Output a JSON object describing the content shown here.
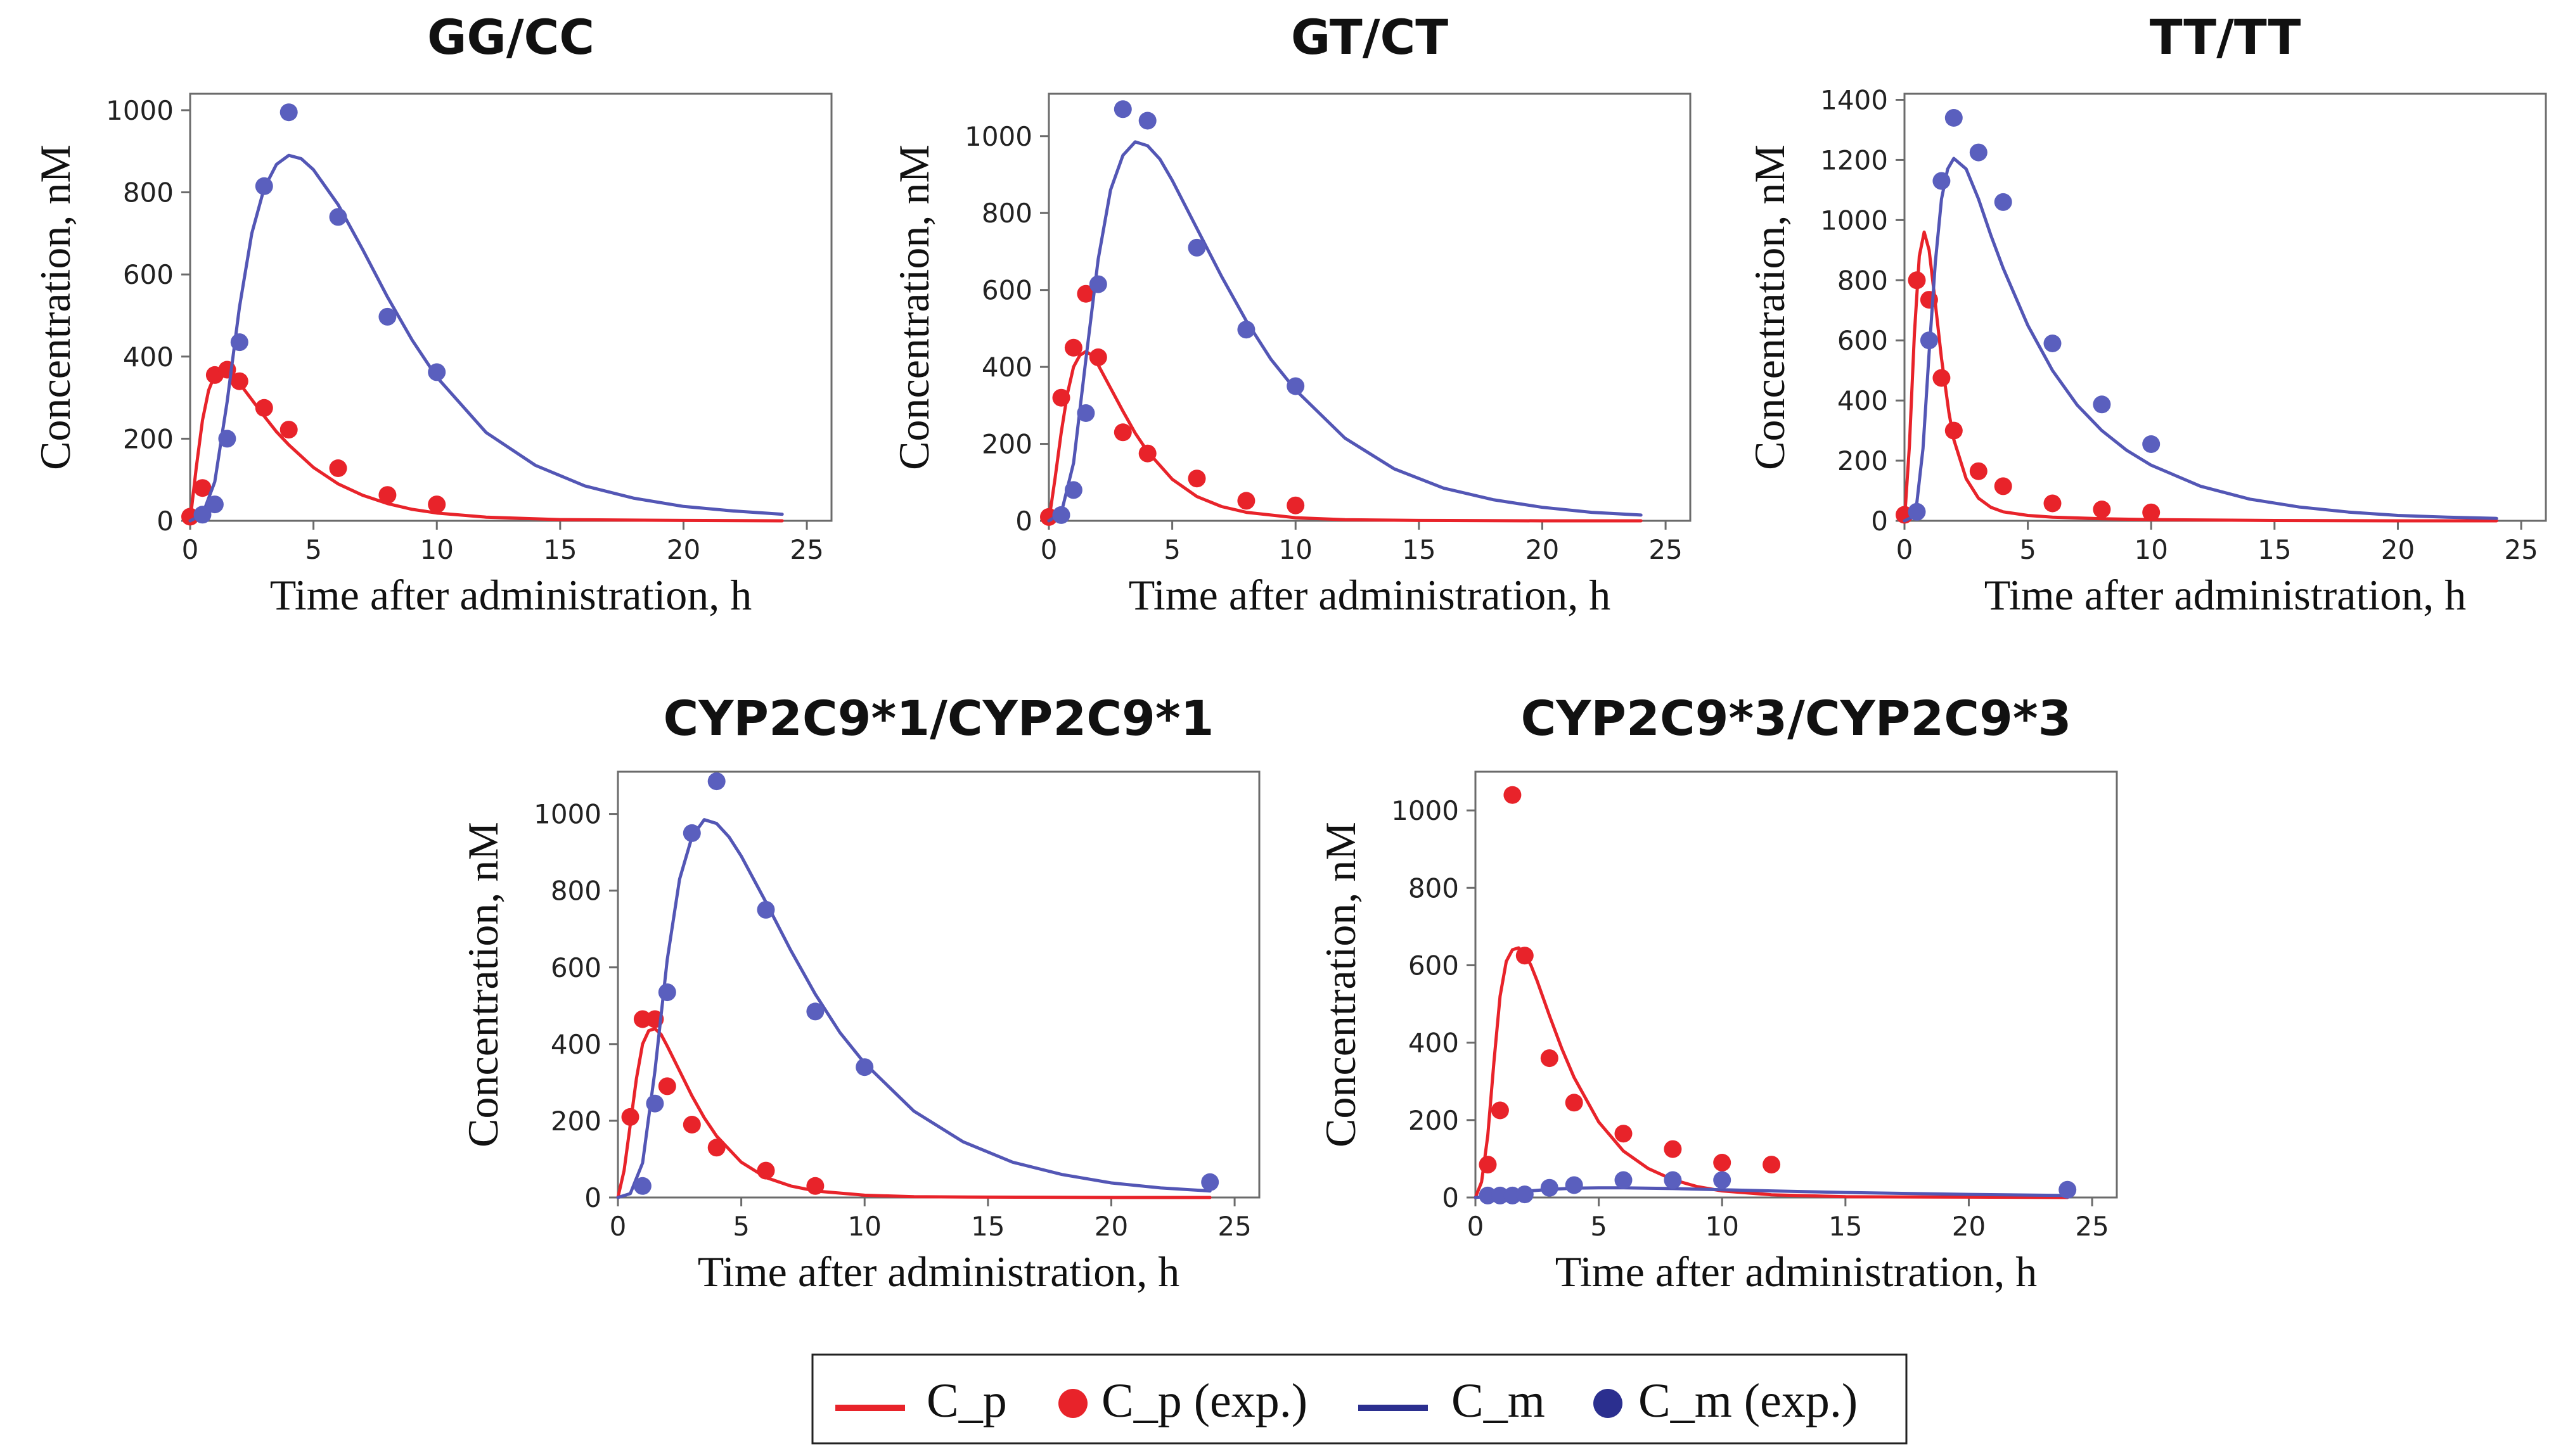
{
  "legend": {
    "items": [
      {
        "label": "C_p",
        "kind": "line",
        "color": "#e8232a"
      },
      {
        "label": "C_p (exp.)",
        "kind": "marker",
        "color": "#e8232a"
      },
      {
        "label": "C_m",
        "kind": "line",
        "color": "#2b2f8f"
      },
      {
        "label": "C_m (exp.)",
        "kind": "marker",
        "color": "#2b2f8f"
      }
    ]
  },
  "colors": {
    "cp_line": "#e8232a",
    "cp_marker": "#e8232a",
    "cm_line": "#5356b5",
    "cm_marker": "#5a5fbe"
  },
  "chart_data": [
    {
      "type": "line",
      "title": "GG/CC",
      "xlabel": "Time after administration, h",
      "ylabel": "Concentration, nM",
      "xlim": [
        0,
        26
      ],
      "ylim": [
        0,
        1040
      ],
      "xticks": [
        0,
        5,
        10,
        15,
        20,
        25
      ],
      "yticks": [
        0,
        200,
        400,
        600,
        800,
        1000
      ],
      "series": [
        {
          "name": "C_p",
          "kind": "line",
          "x": [
            0,
            0.25,
            0.5,
            0.75,
            1,
            1.25,
            1.5,
            1.75,
            2,
            2.5,
            3,
            3.5,
            4,
            5,
            6,
            7,
            8,
            9,
            10,
            12,
            15,
            20,
            24
          ],
          "y": [
            0,
            130,
            245,
            318,
            355,
            366,
            362,
            350,
            335,
            295,
            255,
            217,
            185,
            130,
            90,
            62,
            42,
            28,
            19,
            9,
            3,
            1,
            0
          ]
        },
        {
          "name": "C_p (exp.)",
          "kind": "marker",
          "x": [
            0,
            0.5,
            1,
            1.5,
            2,
            3,
            4,
            6,
            8,
            10
          ],
          "y": [
            10,
            80,
            355,
            368,
            340,
            275,
            222,
            128,
            63,
            40
          ]
        },
        {
          "name": "C_m",
          "kind": "line",
          "x": [
            0,
            0.5,
            1,
            1.5,
            2,
            2.5,
            3,
            3.5,
            4,
            4.5,
            5,
            6,
            7,
            8,
            9,
            10,
            12,
            14,
            16,
            18,
            20,
            22,
            24
          ],
          "y": [
            0,
            15,
            95,
            290,
            520,
            700,
            810,
            868,
            890,
            882,
            855,
            770,
            660,
            545,
            440,
            350,
            215,
            135,
            85,
            55,
            35,
            24,
            16
          ]
        },
        {
          "name": "C_m (exp.)",
          "kind": "marker",
          "x": [
            0.5,
            1,
            1.5,
            2,
            3,
            4,
            6,
            8,
            10
          ],
          "y": [
            15,
            40,
            200,
            435,
            815,
            995,
            740,
            497,
            362
          ]
        }
      ]
    },
    {
      "type": "line",
      "title": "GT/CT",
      "xlabel": "Time after administration, h",
      "ylabel": "Concentration, nM",
      "xlim": [
        0,
        26
      ],
      "ylim": [
        0,
        1110
      ],
      "xticks": [
        0,
        5,
        10,
        15,
        20,
        25
      ],
      "yticks": [
        0,
        200,
        400,
        600,
        800,
        1000
      ],
      "series": [
        {
          "name": "C_p",
          "kind": "line",
          "x": [
            0,
            0.25,
            0.5,
            0.75,
            1,
            1.25,
            1.5,
            1.75,
            2,
            2.5,
            3,
            3.5,
            4,
            5,
            6,
            7,
            8,
            10,
            12,
            15,
            20,
            24
          ],
          "y": [
            0,
            110,
            230,
            330,
            400,
            430,
            440,
            430,
            405,
            345,
            285,
            228,
            180,
            108,
            63,
            37,
            22,
            8,
            3,
            1,
            0,
            0
          ]
        },
        {
          "name": "C_p (exp.)",
          "kind": "marker",
          "x": [
            0,
            0.5,
            1,
            1.5,
            2,
            3,
            4,
            6,
            8,
            10
          ],
          "y": [
            10,
            320,
            450,
            590,
            425,
            230,
            175,
            110,
            52,
            40
          ]
        },
        {
          "name": "C_m",
          "kind": "line",
          "x": [
            0,
            0.5,
            1,
            1.5,
            2,
            2.5,
            3,
            3.5,
            4,
            4.5,
            5,
            6,
            7,
            8,
            9,
            10,
            12,
            14,
            16,
            18,
            20,
            22,
            24
          ],
          "y": [
            0,
            20,
            150,
            420,
            680,
            860,
            950,
            985,
            975,
            940,
            885,
            760,
            635,
            520,
            420,
            340,
            215,
            135,
            85,
            55,
            35,
            22,
            15
          ]
        },
        {
          "name": "C_m (exp.)",
          "kind": "marker",
          "x": [
            0.5,
            1,
            1.5,
            2,
            3,
            4,
            6,
            8,
            10
          ],
          "y": [
            15,
            80,
            280,
            615,
            1070,
            1040,
            710,
            497,
            350
          ]
        }
      ]
    },
    {
      "type": "line",
      "title": "TT/TT",
      "xlabel": "Time after administration, h",
      "ylabel": "Concentration, nM",
      "xlim": [
        0,
        26
      ],
      "ylim": [
        0,
        1420
      ],
      "xticks": [
        0,
        5,
        10,
        15,
        20,
        25
      ],
      "yticks": [
        0,
        200,
        400,
        600,
        800,
        1000,
        1200,
        1400
      ],
      "series": [
        {
          "name": "C_p",
          "kind": "line",
          "x": [
            0,
            0.2,
            0.4,
            0.6,
            0.8,
            1,
            1.2,
            1.5,
            1.8,
            2,
            2.5,
            3,
            3.5,
            4,
            5,
            6,
            8,
            10,
            15,
            20,
            24
          ],
          "y": [
            0,
            250,
            620,
            880,
            960,
            900,
            760,
            540,
            360,
            270,
            140,
            75,
            45,
            30,
            18,
            12,
            7,
            4,
            1,
            0,
            0
          ]
        },
        {
          "name": "C_p (exp.)",
          "kind": "marker",
          "x": [
            0,
            0.5,
            1,
            1.5,
            2,
            3,
            4,
            6,
            8,
            10
          ],
          "y": [
            20,
            800,
            735,
            475,
            300,
            165,
            115,
            58,
            38,
            28
          ]
        },
        {
          "name": "C_m",
          "kind": "line",
          "x": [
            0,
            0.25,
            0.5,
            0.75,
            1,
            1.25,
            1.5,
            1.75,
            2,
            2.5,
            3,
            3.5,
            4,
            5,
            6,
            7,
            8,
            9,
            10,
            12,
            14,
            16,
            18,
            20,
            22,
            24
          ],
          "y": [
            0,
            10,
            60,
            240,
            560,
            860,
            1070,
            1170,
            1205,
            1170,
            1070,
            950,
            840,
            650,
            500,
            385,
            300,
            235,
            185,
            115,
            72,
            46,
            29,
            18,
            12,
            8
          ]
        },
        {
          "name": "C_m (exp.)",
          "kind": "marker",
          "x": [
            0.5,
            1,
            1.5,
            2,
            3,
            4,
            6,
            8,
            10
          ],
          "y": [
            30,
            600,
            1130,
            1340,
            1225,
            1060,
            590,
            387,
            255
          ]
        }
      ]
    },
    {
      "type": "line",
      "title": "CYP2C9*1/CYP2C9*1",
      "xlabel": "Time after administration, h",
      "ylabel": "Concentration, nM",
      "xlim": [
        0,
        26
      ],
      "ylim": [
        0,
        1110
      ],
      "xticks": [
        0,
        5,
        10,
        15,
        20,
        25
      ],
      "yticks": [
        0,
        200,
        400,
        600,
        800,
        1000
      ],
      "series": [
        {
          "name": "C_p",
          "kind": "line",
          "x": [
            0,
            0.25,
            0.5,
            0.75,
            1,
            1.25,
            1.5,
            1.75,
            2,
            2.5,
            3,
            3.5,
            4,
            5,
            6,
            7,
            8,
            10,
            12,
            15,
            20,
            24
          ],
          "y": [
            0,
            70,
            190,
            310,
            400,
            435,
            440,
            425,
            395,
            330,
            265,
            208,
            160,
            92,
            52,
            30,
            17,
            6,
            2,
            1,
            0,
            0
          ]
        },
        {
          "name": "C_p (exp.)",
          "kind": "marker",
          "x": [
            0.5,
            1,
            1.5,
            2,
            3,
            4,
            6,
            8
          ],
          "y": [
            210,
            465,
            465,
            290,
            190,
            130,
            70,
            30
          ]
        },
        {
          "name": "C_m",
          "kind": "line",
          "x": [
            0,
            0.5,
            1,
            1.5,
            2,
            2.5,
            3,
            3.5,
            4,
            4.5,
            5,
            6,
            7,
            8,
            9,
            10,
            12,
            14,
            16,
            18,
            20,
            22,
            24
          ],
          "y": [
            0,
            10,
            90,
            330,
            620,
            830,
            940,
            985,
            975,
            940,
            890,
            770,
            645,
            530,
            430,
            350,
            225,
            145,
            92,
            60,
            38,
            25,
            17
          ]
        },
        {
          "name": "C_m (exp.)",
          "kind": "marker",
          "x": [
            1,
            1.5,
            2,
            3,
            4,
            6,
            8,
            10,
            24
          ],
          "y": [
            30,
            245,
            535,
            950,
            1085,
            750,
            485,
            340,
            40
          ]
        }
      ]
    },
    {
      "type": "line",
      "title": "CYP2C9*3/CYP2C9*3",
      "xlabel": "Time after administration, h",
      "ylabel": "Concentration, nM",
      "xlim": [
        0,
        26
      ],
      "ylim": [
        0,
        1100
      ],
      "xticks": [
        0,
        5,
        10,
        15,
        20,
        25
      ],
      "yticks": [
        0,
        200,
        400,
        600,
        800,
        1000
      ],
      "series": [
        {
          "name": "C_p",
          "kind": "line",
          "x": [
            0,
            0.25,
            0.5,
            0.75,
            1,
            1.25,
            1.5,
            1.75,
            2,
            2.25,
            2.5,
            3,
            3.5,
            4,
            5,
            6,
            7,
            8,
            9,
            10,
            12,
            15,
            20,
            24
          ],
          "y": [
            0,
            40,
            160,
            350,
            520,
            610,
            640,
            645,
            630,
            600,
            560,
            470,
            385,
            310,
            195,
            120,
            75,
            46,
            28,
            17,
            7,
            2,
            1,
            0
          ]
        },
        {
          "name": "C_p (exp.)",
          "kind": "marker",
          "x": [
            0.5,
            1,
            1.5,
            2,
            3,
            4,
            6,
            8,
            10,
            12
          ],
          "y": [
            85,
            225,
            1040,
            625,
            360,
            245,
            165,
            125,
            90,
            85
          ]
        },
        {
          "name": "C_m",
          "kind": "line",
          "x": [
            0,
            0.5,
            1,
            1.5,
            2,
            3,
            4,
            5,
            6,
            8,
            10,
            12,
            15,
            20,
            24
          ],
          "y": [
            0,
            3,
            8,
            12,
            16,
            21,
            24,
            25,
            25,
            23,
            20,
            17,
            13,
            8,
            5
          ]
        },
        {
          "name": "C_m (exp.)",
          "kind": "marker",
          "x": [
            0.5,
            1,
            1.5,
            2,
            3,
            4,
            6,
            8,
            10,
            24
          ],
          "y": [
            5,
            5,
            5,
            8,
            25,
            32,
            45,
            45,
            45,
            20
          ]
        }
      ]
    }
  ]
}
